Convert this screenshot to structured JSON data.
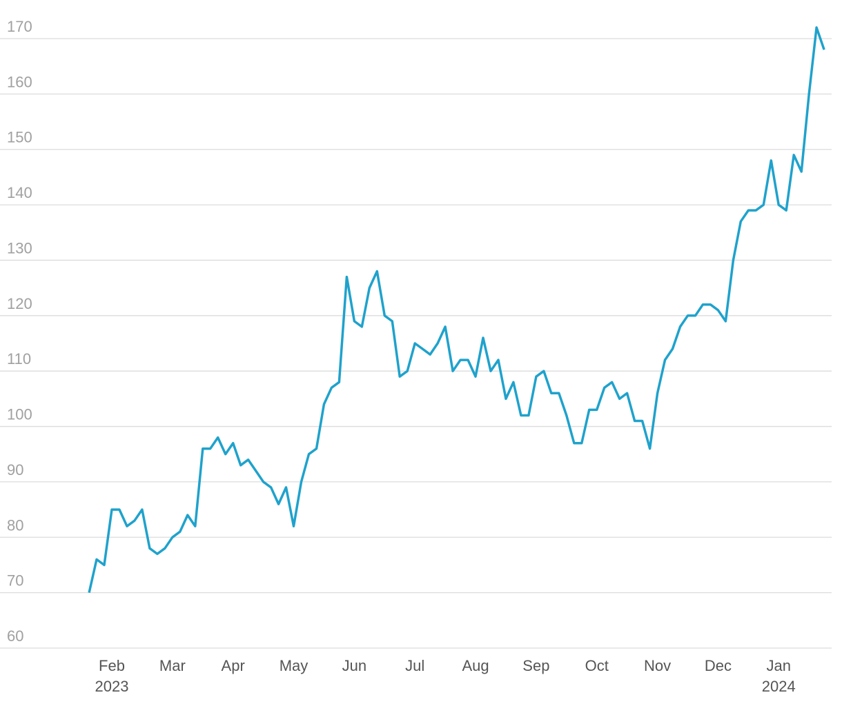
{
  "chart_data": {
    "type": "line",
    "categories": [
      null,
      null,
      null,
      "Feb 2023",
      null,
      null,
      null,
      null,
      null,
      null,
      null,
      "Mar",
      null,
      null,
      null,
      null,
      null,
      null,
      null,
      "Apr",
      null,
      null,
      null,
      null,
      null,
      null,
      null,
      "May",
      null,
      null,
      null,
      null,
      null,
      null,
      null,
      "Jun",
      null,
      null,
      null,
      null,
      null,
      null,
      null,
      "Jul",
      null,
      null,
      null,
      null,
      null,
      null,
      null,
      "Aug",
      null,
      null,
      null,
      null,
      null,
      null,
      null,
      "Sep",
      null,
      null,
      null,
      null,
      null,
      null,
      null,
      "Oct",
      null,
      null,
      null,
      null,
      null,
      null,
      null,
      "Nov",
      null,
      null,
      null,
      null,
      null,
      null,
      null,
      "Dec",
      null,
      null,
      null,
      null,
      null,
      null,
      null,
      "Jan 2024",
      null,
      null,
      null,
      null,
      null,
      null
    ],
    "series": [
      {
        "color": "#1fa2cc",
        "values": [
          70,
          76,
          75,
          85,
          85,
          82,
          83,
          85,
          78,
          77,
          78,
          80,
          81,
          84,
          82,
          96,
          96,
          98,
          95,
          97,
          93,
          94,
          92,
          90,
          89,
          86,
          89,
          82,
          90,
          95,
          96,
          104,
          107,
          108,
          127,
          119,
          118,
          125,
          128,
          120,
          119,
          109,
          110,
          115,
          114,
          113,
          115,
          118,
          110,
          112,
          112,
          109,
          116,
          110,
          112,
          105,
          108,
          102,
          102,
          109,
          110,
          106,
          106,
          102,
          97,
          97,
          103,
          103,
          107,
          108,
          105,
          106,
          101,
          101,
          96,
          106,
          112,
          114,
          118,
          120,
          120,
          122,
          122,
          121,
          119,
          130,
          137,
          139,
          139,
          140,
          148,
          140,
          139,
          149,
          146,
          160,
          172,
          168
        ]
      }
    ],
    "ylim": [
      60,
      170
    ],
    "yticks": [
      60,
      70,
      80,
      90,
      100,
      110,
      120,
      130,
      140,
      150,
      160,
      170
    ],
    "grid": true
  }
}
